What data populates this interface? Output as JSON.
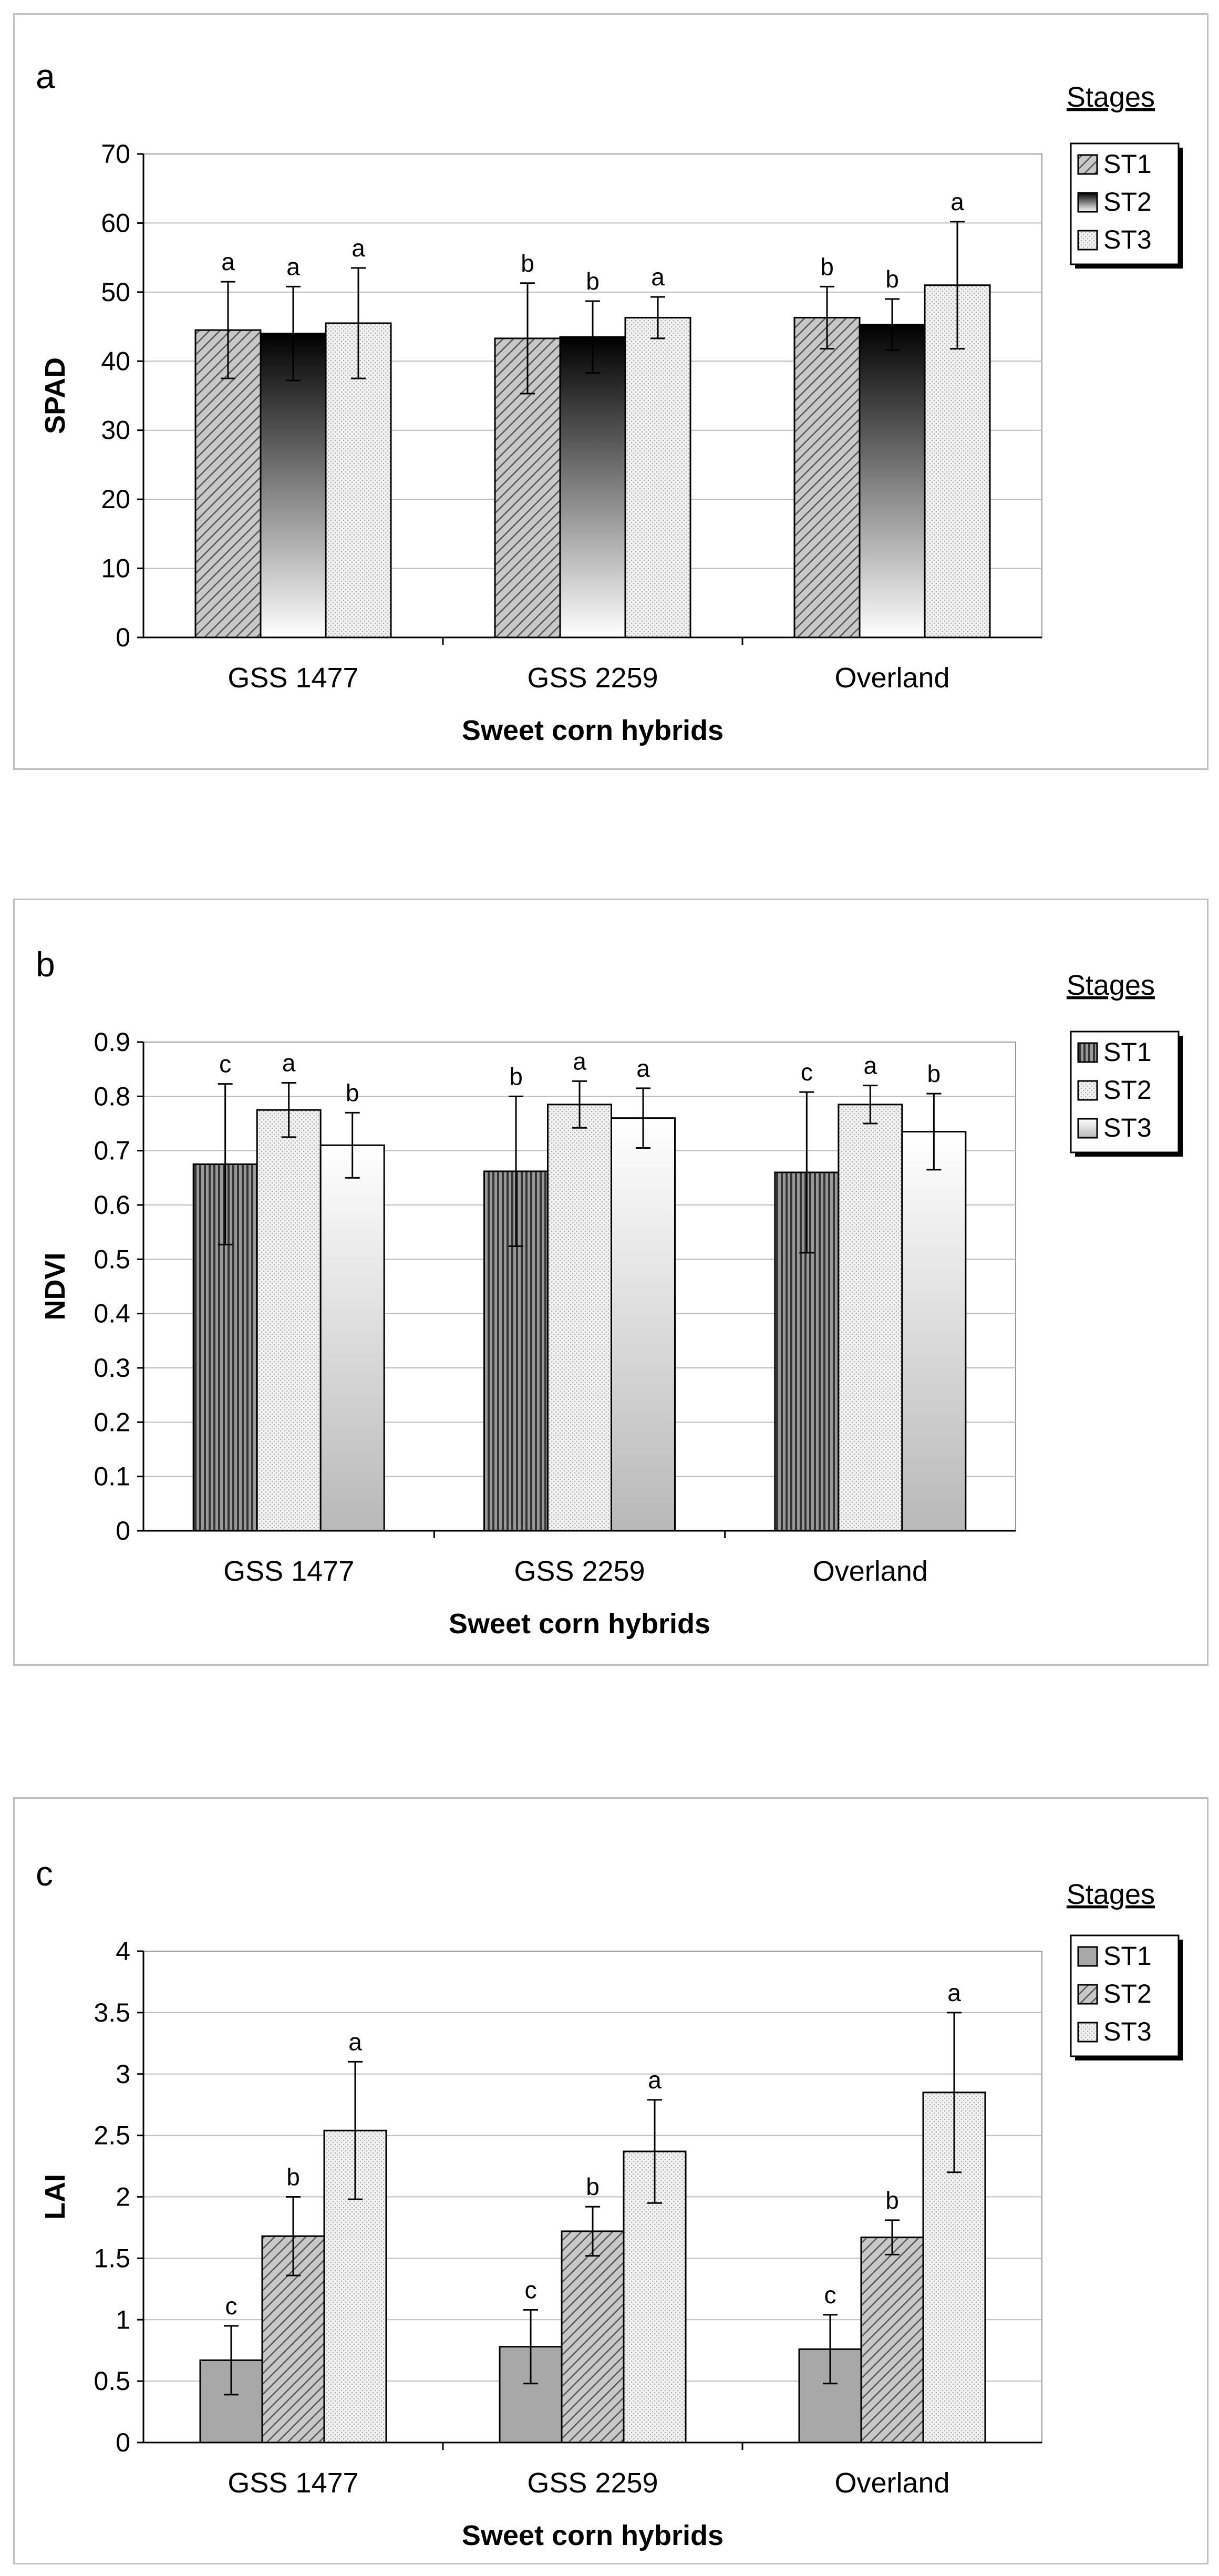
{
  "chart_data": [
    {
      "type": "bar",
      "panel": "a",
      "ylabel": "SPAD",
      "xlabel": "Sweet corn hybrids",
      "ylim": [
        0,
        70
      ],
      "yticks": [
        0,
        10,
        20,
        30,
        40,
        50,
        60,
        70
      ],
      "ytick_labels": [
        "0",
        "10",
        "20",
        "30",
        "40",
        "50",
        "60",
        "70"
      ],
      "grid": true,
      "legend_title": "Stages",
      "legend_position": "right",
      "categories": [
        "GSS 1477",
        "GSS 2259",
        "Overland"
      ],
      "series": [
        {
          "name": "ST1",
          "values": [
            44.5,
            43.3,
            46.3
          ],
          "errors": [
            7.0,
            8.0,
            4.5
          ],
          "letters": [
            "a",
            "b",
            "b"
          ],
          "pattern": "hatch"
        },
        {
          "name": "ST2",
          "values": [
            44.0,
            43.5,
            45.3
          ],
          "errors": [
            6.8,
            5.2,
            3.7
          ],
          "letters": [
            "a",
            "b",
            "b"
          ],
          "pattern": "gradient"
        },
        {
          "name": "ST3",
          "values": [
            45.5,
            46.3,
            51.0
          ],
          "errors": [
            8.0,
            3.0,
            9.2
          ],
          "letters": [
            "a",
            "a",
            "a"
          ],
          "pattern": "dots"
        }
      ]
    },
    {
      "type": "bar",
      "panel": "b",
      "ylabel": "NDVI",
      "xlabel": "Sweet corn hybrids",
      "ylim": [
        0,
        0.9
      ],
      "yticks": [
        0,
        0.1,
        0.2,
        0.3,
        0.4,
        0.5,
        0.6,
        0.7,
        0.8,
        0.9
      ],
      "ytick_labels": [
        "0",
        "0.1",
        "0.2",
        "0.3",
        "0.4",
        "0.5",
        "0.6",
        "0.7",
        "0.8",
        "0.9"
      ],
      "grid": true,
      "legend_title": "Stages",
      "legend_position": "right",
      "categories": [
        "GSS 1477",
        "GSS 2259",
        "Overland"
      ],
      "series": [
        {
          "name": "ST1",
          "values": [
            0.675,
            0.662,
            0.66
          ],
          "errors": [
            0.148,
            0.138,
            0.148
          ],
          "letters": [
            "c",
            "b",
            "c"
          ],
          "pattern": "vlines"
        },
        {
          "name": "ST2",
          "values": [
            0.775,
            0.785,
            0.785
          ],
          "errors": [
            0.05,
            0.043,
            0.035
          ],
          "letters": [
            "a",
            "a",
            "a"
          ],
          "pattern": "dots"
        },
        {
          "name": "ST3",
          "values": [
            0.71,
            0.76,
            0.735
          ],
          "errors": [
            0.06,
            0.055,
            0.07
          ],
          "letters": [
            "b",
            "a",
            "b"
          ],
          "pattern": "gradient"
        }
      ]
    },
    {
      "type": "bar",
      "panel": "c",
      "ylabel": "LAI",
      "xlabel": "Sweet corn hybrids",
      "ylim": [
        0,
        4
      ],
      "yticks": [
        0,
        0.5,
        1,
        1.5,
        2,
        2.5,
        3,
        3.5,
        4
      ],
      "ytick_labels": [
        "0",
        "0.5",
        "1",
        "1.5",
        "2",
        "2.5",
        "3",
        "3.5",
        "4"
      ],
      "grid": true,
      "legend_title": "Stages",
      "legend_position": "right",
      "categories": [
        "GSS 1477",
        "GSS 2259",
        "Overland"
      ],
      "series": [
        {
          "name": "ST1",
          "values": [
            0.67,
            0.78,
            0.76
          ],
          "errors": [
            0.28,
            0.3,
            0.28
          ],
          "letters": [
            "c",
            "c",
            "c"
          ],
          "pattern": "solid"
        },
        {
          "name": "ST2",
          "values": [
            1.68,
            1.72,
            1.67
          ],
          "errors": [
            0.32,
            0.2,
            0.14
          ],
          "letters": [
            "b",
            "b",
            "b"
          ],
          "pattern": "hatch"
        },
        {
          "name": "ST3",
          "values": [
            2.54,
            2.37,
            2.85
          ],
          "errors": [
            0.56,
            0.42,
            0.65
          ],
          "letters": [
            "a",
            "a",
            "a"
          ],
          "pattern": "dots"
        }
      ]
    }
  ]
}
